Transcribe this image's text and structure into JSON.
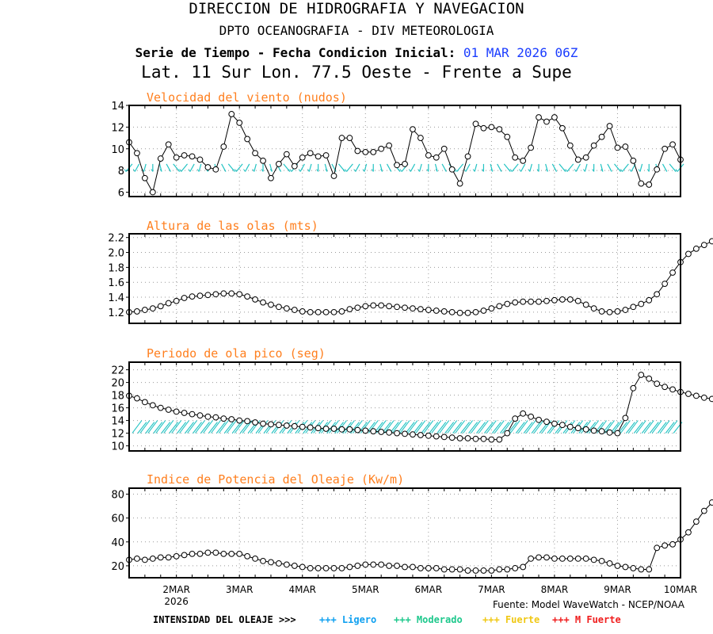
{
  "header": {
    "line1": "DIRECCION DE HIDROGRAFIA Y NAVEGACION",
    "line2": "DPTO OCEANOGRAFIA - DIV METEOROLOGIA",
    "line3_prefix": "Serie de Tiempo - Fecha Condicion Inicial: ",
    "line3_date": "01 MAR 2026 06Z",
    "line4": "Lat. 11 Sur  Lon. 77.5 Oeste - Frente a Supe"
  },
  "x_labels": [
    "2MAR",
    "3MAR",
    "4MAR",
    "5MAR",
    "6MAR",
    "7MAR",
    "8MAR",
    "9MAR",
    "10MAR"
  ],
  "year_label": "2026",
  "source": "Fuente: Model WaveWatch - NCEP/NOAA",
  "legend": {
    "prefix": "INTENSIDAD DEL OLEAJE >>>",
    "items": [
      {
        "label": "+++ Ligero",
        "color": "#0fa0f0"
      },
      {
        "label": "+++ Moderado",
        "color": "#1ec88c"
      },
      {
        "label": "+++ Fuerte",
        "color": "#f0c814"
      },
      {
        "label": "+++ M Fuerte",
        "color": "#f01e1e"
      }
    ]
  },
  "colors": {
    "title": "#ff7f1e",
    "arrows": "#23c3c3",
    "line": "#000000",
    "date": "#1a3cff"
  },
  "chart_data": [
    {
      "type": "line",
      "title": "Velocidad del viento (nudos)",
      "x_start_day": 1.25,
      "x_step_days": 0.125,
      "xlim": [
        1.25,
        10
      ],
      "ylim": [
        5.6,
        14
      ],
      "yticks": [
        6,
        8,
        10,
        12,
        14
      ],
      "series": [
        {
          "values": [
            10.6,
            9.6,
            7.3,
            6.0,
            9.1,
            10.4,
            9.2,
            9.4,
            9.3,
            9.0,
            8.3,
            8.1,
            10.2,
            13.2,
            12.4,
            10.9,
            9.6,
            8.9,
            7.3,
            8.6,
            9.5,
            8.4,
            9.2,
            9.6,
            9.3,
            9.4,
            7.5,
            11.0,
            11.0,
            9.8,
            9.7,
            9.7,
            10.0,
            10.3,
            8.5,
            8.6,
            11.8,
            11.0,
            9.4,
            9.2,
            10.0,
            8.1,
            6.8,
            9.3,
            12.3,
            11.9,
            12.0,
            11.8,
            11.1,
            9.2,
            8.9,
            10.1,
            12.9,
            12.5,
            12.9,
            11.9,
            10.3,
            9.0,
            9.2,
            10.3,
            11.1,
            12.1,
            10.1,
            10.2,
            8.9,
            6.8,
            6.7,
            8.1,
            10.0,
            10.4,
            9.0
          ]
        }
      ],
      "direction_arrows": true
    },
    {
      "type": "line",
      "title": "Altura de las olas (mts)",
      "x_start_day": 1.25,
      "x_step_days": 0.125,
      "xlim": [
        1.25,
        10
      ],
      "ylim": [
        1.05,
        2.25
      ],
      "yticks": [
        1.2,
        1.4,
        1.6,
        1.8,
        2.0,
        2.2
      ],
      "series": [
        {
          "values": [
            1.2,
            1.21,
            1.23,
            1.25,
            1.28,
            1.32,
            1.35,
            1.39,
            1.41,
            1.42,
            1.43,
            1.44,
            1.45,
            1.45,
            1.44,
            1.41,
            1.37,
            1.33,
            1.3,
            1.27,
            1.25,
            1.23,
            1.21,
            1.2,
            1.2,
            1.2,
            1.2,
            1.21,
            1.24,
            1.26,
            1.28,
            1.29,
            1.29,
            1.28,
            1.27,
            1.26,
            1.25,
            1.24,
            1.23,
            1.22,
            1.21,
            1.2,
            1.19,
            1.19,
            1.2,
            1.22,
            1.25,
            1.28,
            1.31,
            1.33,
            1.34,
            1.34,
            1.34,
            1.35,
            1.36,
            1.37,
            1.37,
            1.35,
            1.3,
            1.25,
            1.21,
            1.2,
            1.21,
            1.23,
            1.27,
            1.31,
            1.36,
            1.44,
            1.58,
            1.73,
            1.87,
            1.98,
            2.05,
            2.1,
            2.15
          ]
        }
      ]
    },
    {
      "type": "line",
      "title": "Periodo de ola pico (seg)",
      "x_start_day": 1.25,
      "x_step_days": 0.125,
      "xlim": [
        1.25,
        10
      ],
      "ylim": [
        9.2,
        23.2
      ],
      "yticks": [
        10,
        12,
        14,
        16,
        18,
        20,
        22
      ],
      "series": [
        {
          "values": [
            17.9,
            17.5,
            16.9,
            16.4,
            16.0,
            15.7,
            15.4,
            15.2,
            15.0,
            14.8,
            14.6,
            14.5,
            14.3,
            14.2,
            14.0,
            13.9,
            13.7,
            13.5,
            13.4,
            13.3,
            13.2,
            13.1,
            13.0,
            12.9,
            12.8,
            12.7,
            12.7,
            12.6,
            12.6,
            12.5,
            12.4,
            12.3,
            12.2,
            12.1,
            12.0,
            11.9,
            11.8,
            11.7,
            11.6,
            11.5,
            11.4,
            11.3,
            11.2,
            11.2,
            11.1,
            11.1,
            11.0,
            11.0,
            12.0,
            14.3,
            15.1,
            14.6,
            14.1,
            13.8,
            13.5,
            13.3,
            13.0,
            12.8,
            12.6,
            12.4,
            12.3,
            12.1,
            12.0,
            14.4,
            19.1,
            21.2,
            20.6,
            19.8,
            19.3,
            18.9,
            18.5,
            18.2,
            17.9,
            17.6,
            17.4
          ]
        }
      ],
      "intensity_band": [
        12,
        14
      ]
    },
    {
      "type": "line",
      "title": "Indice de Potencia del Oleaje (Kw/m)",
      "x_start_day": 1.25,
      "x_step_days": 0.125,
      "xlim": [
        1.25,
        10
      ],
      "ylim": [
        10,
        85
      ],
      "yticks": [
        20,
        40,
        60,
        80
      ],
      "series": [
        {
          "values": [
            25,
            26,
            25,
            26,
            27,
            27,
            28,
            29,
            30,
            30,
            31,
            31,
            30,
            30,
            30,
            28,
            26,
            24,
            23,
            22,
            21,
            20,
            19,
            18,
            18,
            18,
            18,
            18,
            19,
            20,
            21,
            21,
            21,
            20,
            20,
            19,
            19,
            18,
            18,
            18,
            17,
            17,
            17,
            16,
            16,
            16,
            16,
            17,
            17,
            18,
            19,
            26,
            27,
            27,
            26,
            26,
            26,
            26,
            26,
            25,
            24,
            22,
            20,
            19,
            18,
            17,
            17,
            35,
            37,
            38,
            42,
            48,
            57,
            66,
            73,
            78,
            80
          ]
        }
      ]
    }
  ]
}
